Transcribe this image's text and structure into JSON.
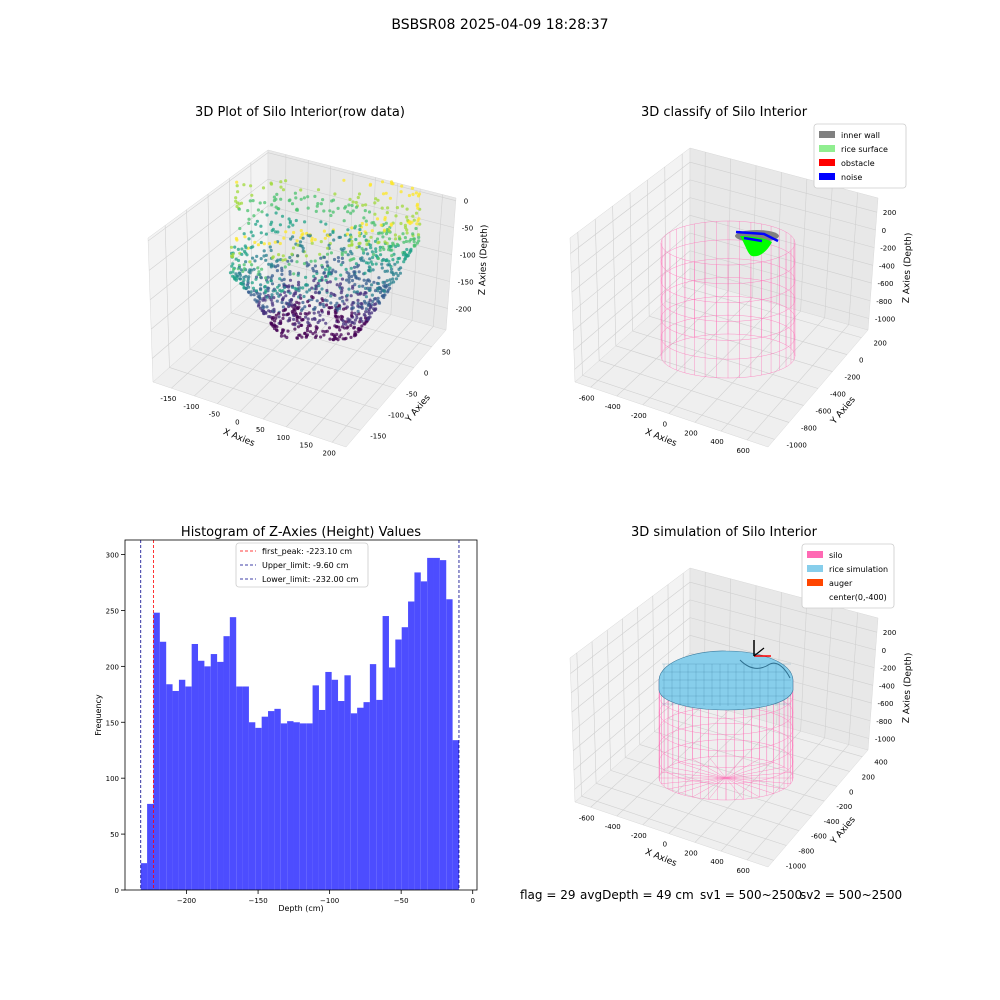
{
  "suptitle": "BSBSR08 2025-04-09 18:28:37",
  "footer": {
    "flag": "flag = 29",
    "avg": "avgDepth = 49 cm",
    "sv1": "sv1 = 500~2500",
    "sv2": "sv2 = 500~2500"
  },
  "chart_data": [
    {
      "type": "scatter",
      "dimension": "3d",
      "title": "3D Plot of Silo Interior(row data)",
      "xlabel": "X Axies",
      "ylabel": "Y Axies",
      "zlabel": "Z Axies (Depth)",
      "x_ticks": [
        -150,
        -100,
        -50,
        0,
        50,
        100,
        150,
        200
      ],
      "y_ticks": [
        -150,
        -100,
        -50,
        0,
        50
      ],
      "z_ticks": [
        0,
        -50,
        -100,
        -150,
        -200
      ],
      "xlim": [
        -190,
        230
      ],
      "ylim": [
        -190,
        90
      ],
      "zlim": [
        -240,
        5
      ],
      "colormap": "viridis",
      "grid": true
    },
    {
      "type": "scatter",
      "dimension": "3d",
      "title": "3D classify of Silo Interior",
      "xlabel": "X Axies",
      "ylabel": "Y Axies",
      "zlabel": "Z Axies (Depth)",
      "x_ticks": [
        -600,
        -400,
        -200,
        0,
        200,
        400,
        600
      ],
      "y_ticks": [
        200,
        0,
        -200,
        -400,
        -600,
        -800,
        -1000
      ],
      "z_ticks": [
        200,
        0,
        -200,
        -400,
        -600,
        -800,
        -1000
      ],
      "legend": [
        {
          "label": "inner wall",
          "color": "#808080"
        },
        {
          "label": "rice surface",
          "color": "#90ee90"
        },
        {
          "label": "obstacle",
          "color": "#ff0000"
        },
        {
          "label": "noise",
          "color": "#0000ff"
        }
      ],
      "legend_position": "top-right",
      "wireframe_color": "#ff69b4",
      "grid": true
    },
    {
      "type": "bar",
      "subtype": "histogram",
      "title": "Histogram of Z-Axies (Height) Values",
      "xlabel": "Depth (cm)",
      "ylabel": "Frequency",
      "x_ticks": [
        -200,
        -150,
        -100,
        -50,
        0
      ],
      "y_ticks": [
        0,
        50,
        100,
        150,
        200,
        250,
        300
      ],
      "xlim": [
        -243,
        3
      ],
      "ylim": [
        0,
        313
      ],
      "bar_color": "#4d4dff",
      "bin_range": [
        -232,
        -9.6
      ],
      "values": [
        24,
        77,
        248,
        222,
        184,
        178,
        188,
        182,
        220,
        205,
        200,
        211,
        204,
        227,
        244,
        182,
        182,
        150,
        145,
        155,
        160,
        162,
        149,
        151,
        150,
        149,
        149,
        183,
        161,
        195,
        188,
        169,
        192,
        158,
        163,
        168,
        202,
        170,
        245,
        199,
        224,
        235,
        258,
        284,
        276,
        297,
        297,
        295,
        260,
        134
      ],
      "vlines": [
        {
          "label": "first_peak: -223.10 cm",
          "x": -223.1,
          "color": "#ff0000"
        },
        {
          "label": "Upper_limit: -9.60 cm",
          "x": -9.6,
          "color": "#00008b"
        },
        {
          "label": "Lower_limit: -232.00 cm",
          "x": -232.0,
          "color": "#00008b"
        }
      ],
      "legend_position": "top-center"
    },
    {
      "type": "surface",
      "dimension": "3d",
      "title": "3D simulation of Silo Interior",
      "xlabel": "X Axies",
      "ylabel": "Y Axies",
      "zlabel": "Z Axies (Depth)",
      "x_ticks": [
        -600,
        -400,
        -200,
        0,
        200,
        400,
        600
      ],
      "y_ticks": [
        400,
        200,
        0,
        -200,
        -400,
        -600,
        -800,
        -1000
      ],
      "z_ticks": [
        200,
        0,
        -200,
        -400,
        -600,
        -800,
        -1000
      ],
      "legend": [
        {
          "label": "silo",
          "color": "#ff69b4"
        },
        {
          "label": "rice simulation",
          "color": "#87ceeb"
        },
        {
          "label": "auger",
          "color": "#ff4500"
        },
        {
          "label": "center(0,-400)",
          "color": "#ffffff"
        }
      ],
      "legend_position": "top-right",
      "grid": true
    }
  ]
}
